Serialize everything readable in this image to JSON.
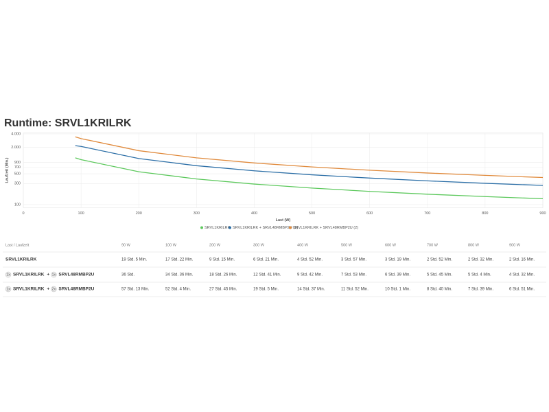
{
  "title": "Runtime: SRVL1KRILRK",
  "chart_data": {
    "type": "line",
    "x_label": "Last (W)",
    "y_label": "Laufzeit (Min.)",
    "x": [
      90,
      100,
      200,
      300,
      400,
      500,
      600,
      700,
      800,
      900
    ],
    "series": [
      {
        "name": "SRVL1KRILRK",
        "color": "#5cc85c",
        "values": [
          1145,
          1042,
          555,
          381,
          292,
          237,
          199,
          172,
          152,
          136
        ]
      },
      {
        "name": "SRVL1KRILRK + SRVL48RMBP2U (1)",
        "color": "#2b6ea6",
        "values": [
          2160,
          2076,
          1106,
          761,
          582,
          473,
          399,
          345,
          304,
          272
        ]
      },
      {
        "name": "SRVL1KRILRK + SRVL48RMBP2U (2)",
        "color": "#e08a3c",
        "values": [
          3433,
          3124,
          1665,
          1145,
          877,
          712,
          601,
          520,
          459,
          411
        ]
      }
    ],
    "xlim": [
      0,
      900
    ],
    "xticks": [
      0,
      100,
      200,
      300,
      400,
      500,
      600,
      700,
      800,
      900
    ],
    "ylim": [
      85,
      4200
    ],
    "yscale": "log",
    "yticks": [
      100,
      300,
      500,
      700,
      900,
      {
        "value": 2000,
        "label": "2.000"
      },
      {
        "value": 4000,
        "label": "4.000"
      }
    ],
    "grid": true,
    "legend": "bottom"
  },
  "table": {
    "header": [
      "Last / Laufzeit",
      "90 W",
      "100 W",
      "200 W",
      "300 W",
      "400 W",
      "500 W",
      "600 W",
      "700 W",
      "800 W",
      "900 W"
    ],
    "rows": [
      {
        "units": [
          {
            "model": "SRVL1KRILRK"
          }
        ],
        "times": [
          "19 Std. 5 Min.",
          "17 Std. 22 Min.",
          "9 Std. 15 Min.",
          "6 Std. 21 Min.",
          "4 Std. 52 Min.",
          "3 Std. 57 Min.",
          "3 Std. 19 Min.",
          "2 Std. 52 Min.",
          "2 Std. 32 Min.",
          "2 Std. 16 Min."
        ]
      },
      {
        "units": [
          {
            "qty": "1x",
            "model": "SRVL1KRILRK"
          },
          {
            "qty": "1x",
            "model": "SRVL48RMBP2U"
          }
        ],
        "separator": "+",
        "times": [
          "36 Std.",
          "34 Std. 36 Min.",
          "18 Std. 26 Min.",
          "12 Std. 41 Min.",
          "9 Std. 42 Min.",
          "7 Std. 53 Min.",
          "6 Std. 39 Min.",
          "5 Std. 45 Min.",
          "5 Std. 4 Min.",
          "4 Std. 32 Min."
        ]
      },
      {
        "units": [
          {
            "qty": "1x",
            "model": "SRVL1KRILRK"
          },
          {
            "qty": "2x",
            "model": "SRVL48RMBP2U"
          }
        ],
        "separator": "+",
        "times": [
          "57 Std. 13 Min.",
          "52 Std. 4 Min.",
          "27 Std. 45 Min.",
          "19 Std. 5 Min.",
          "14 Std. 37 Min.",
          "11 Std. 52 Min.",
          "10 Std. 1 Min.",
          "8 Std. 40 Min.",
          "7 Std. 39 Min.",
          "6 Std. 51 Min."
        ]
      }
    ]
  }
}
